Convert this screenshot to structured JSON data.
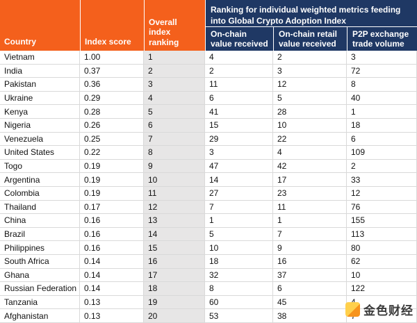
{
  "header": {
    "country_label": "Country",
    "index_score_label": "Index score",
    "overall_ranking_label": "Overall index ranking",
    "group_label": "Ranking for individual weighted metrics feeding into Global Crypto Adoption Index",
    "metric_1_label": "On-chain value received",
    "metric_2_label": "On-chain retail value received",
    "metric_3_label": "P2P exchange trade volume"
  },
  "colors": {
    "orange_header": "#F4601C",
    "navy_header": "#1F3864",
    "ranking_column_bg": "#E7E6E6",
    "grid_line": "#D9D9D9",
    "watermark_gold": "#FFD04C",
    "watermark_orange": "#F7941D"
  },
  "watermark": {
    "brand_text": "金色财经",
    "icon": "coin-logo-icon"
  },
  "chart_data": {
    "type": "table",
    "title": "Global Crypto Adoption Index",
    "columns": [
      "Country",
      "Index score",
      "Overall index ranking",
      "On-chain value received",
      "On-chain retail value received",
      "P2P exchange trade volume"
    ],
    "rows": [
      [
        "Vietnam",
        "1.00",
        "1",
        "4",
        "2",
        "3"
      ],
      [
        "India",
        "0.37",
        "2",
        "2",
        "3",
        "72"
      ],
      [
        "Pakistan",
        "0.36",
        "3",
        "11",
        "12",
        "8"
      ],
      [
        "Ukraine",
        "0.29",
        "4",
        "6",
        "5",
        "40"
      ],
      [
        "Kenya",
        "0.28",
        "5",
        "41",
        "28",
        "1"
      ],
      [
        "Nigeria",
        "0.26",
        "6",
        "15",
        "10",
        "18"
      ],
      [
        "Venezuela",
        "0.25",
        "7",
        "29",
        "22",
        "6"
      ],
      [
        "United States",
        "0.22",
        "8",
        "3",
        "4",
        "109"
      ],
      [
        "Togo",
        "0.19",
        "9",
        "47",
        "42",
        "2"
      ],
      [
        "Argentina",
        "0.19",
        "10",
        "14",
        "17",
        "33"
      ],
      [
        "Colombia",
        "0.19",
        "11",
        "27",
        "23",
        "12"
      ],
      [
        "Thailand",
        "0.17",
        "12",
        "7",
        "11",
        "76"
      ],
      [
        "China",
        "0.16",
        "13",
        "1",
        "1",
        "155"
      ],
      [
        "Brazil",
        "0.16",
        "14",
        "5",
        "7",
        "113"
      ],
      [
        "Philippines",
        "0.16",
        "15",
        "10",
        "9",
        "80"
      ],
      [
        "South Africa",
        "0.14",
        "16",
        "18",
        "16",
        "62"
      ],
      [
        "Ghana",
        "0.14",
        "17",
        "32",
        "37",
        "10"
      ],
      [
        "Russian Federation",
        "0.14",
        "18",
        "8",
        "6",
        "122"
      ],
      [
        "Tanzania",
        "0.13",
        "19",
        "60",
        "45",
        "4"
      ],
      [
        "Afghanistan",
        "0.13",
        "20",
        "53",
        "38",
        "7"
      ]
    ]
  }
}
